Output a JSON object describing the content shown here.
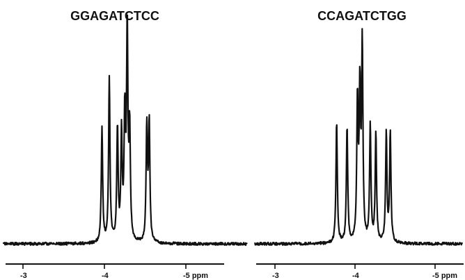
{
  "chart_data": [
    {
      "type": "line",
      "title": "GGAGATCTCC",
      "xlabel": "",
      "ylabel": "",
      "x_unit": "ppm",
      "xlim": [
        -2.75,
        -5.75
      ],
      "x_reversed": true,
      "ticks": [
        {
          "value": -3,
          "label": "-3"
        },
        {
          "value": -4,
          "label": "-4"
        },
        {
          "value": -5,
          "label": "-5 ppm"
        }
      ],
      "grid": false,
      "legend": "none",
      "baseline": 2,
      "peaks": [
        {
          "x": -3.97,
          "height": 165
        },
        {
          "x": -4.06,
          "height": 236
        },
        {
          "x": -4.16,
          "height": 163
        },
        {
          "x": -4.21,
          "height": 152
        },
        {
          "x": -4.25,
          "height": 175
        },
        {
          "x": -4.28,
          "height": 302
        },
        {
          "x": -4.31,
          "height": 158
        },
        {
          "x": -4.52,
          "height": 165
        },
        {
          "x": -4.55,
          "height": 170
        }
      ]
    },
    {
      "type": "line",
      "title": "CCAGATCTGG",
      "xlabel": "",
      "ylabel": "",
      "x_unit": "ppm",
      "xlim": [
        -2.75,
        -5.75
      ],
      "x_reversed": true,
      "ticks": [
        {
          "value": -3,
          "label": "-3"
        },
        {
          "value": -4,
          "label": "-4"
        },
        {
          "value": -5,
          "label": "-5 ppm"
        }
      ],
      "grid": false,
      "legend": "none",
      "baseline": 2,
      "peaks": [
        {
          "x": -3.77,
          "height": 176
        },
        {
          "x": -3.9,
          "height": 168
        },
        {
          "x": -4.03,
          "height": 200
        },
        {
          "x": -4.06,
          "height": 210
        },
        {
          "x": -4.09,
          "height": 280
        },
        {
          "x": -4.19,
          "height": 168
        },
        {
          "x": -4.26,
          "height": 158
        },
        {
          "x": -4.39,
          "height": 157
        },
        {
          "x": -4.44,
          "height": 160
        }
      ]
    }
  ]
}
